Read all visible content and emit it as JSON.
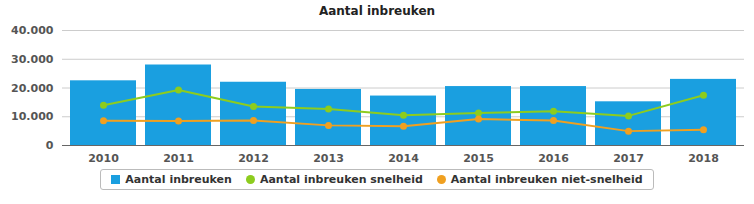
{
  "chart_data": {
    "type": "bar",
    "title": "Aantal inbreuken",
    "categories": [
      "2010",
      "2011",
      "2012",
      "2013",
      "2014",
      "2015",
      "2016",
      "2017",
      "2018"
    ],
    "series": [
      {
        "name": "Aantal inbreuken",
        "type": "bar",
        "color": "#1a9fe0",
        "values": [
          22500,
          28000,
          22000,
          19500,
          17200,
          20500,
          20500,
          15200,
          23000
        ]
      },
      {
        "name": "Aantal inbreuken snelheid",
        "type": "line",
        "marker": "circle",
        "color": "#8dcc1e",
        "values": [
          14000,
          19300,
          13600,
          12700,
          10500,
          11300,
          11900,
          10300,
          17500
        ]
      },
      {
        "name": "Aantal inbreuken niet-snelheid",
        "type": "line",
        "marker": "circle",
        "color": "#f0a020",
        "values": [
          8600,
          8500,
          8700,
          7000,
          6700,
          9200,
          8700,
          5000,
          5500
        ]
      }
    ],
    "ylim": [
      0,
      40000
    ],
    "yticks": [
      0,
      {
        "value": 10000,
        "label": "10.000"
      },
      {
        "value": 20000,
        "label": "20.000"
      },
      {
        "value": 30000,
        "label": "30.000"
      },
      {
        "value": 40000,
        "label": "40.000"
      }
    ],
    "grid": true,
    "legend": "bottom"
  }
}
